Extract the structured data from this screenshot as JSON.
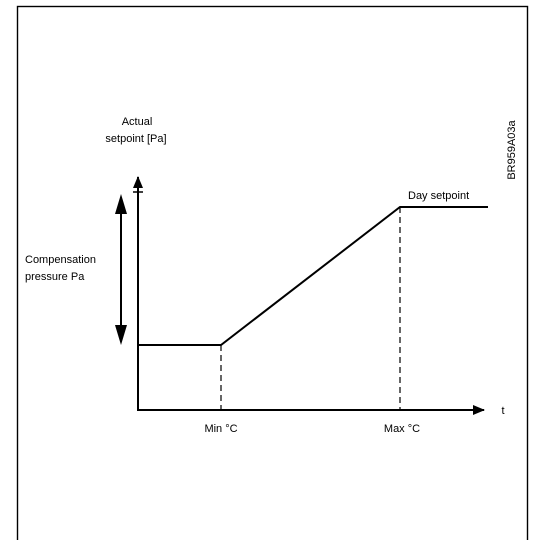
{
  "diagram": {
    "y_axis_label_line1": "Actual",
    "y_axis_label_line2": "setpoint [Pa]",
    "x_axis_label": "t",
    "compensation_label_line1": "Compensation",
    "compensation_label_line2": "pressure Pa",
    "min_label": "Min °C",
    "max_label": "Max °C",
    "day_setpoint_label": "Day setpoint",
    "figure_code": "BR959A03a"
  }
}
